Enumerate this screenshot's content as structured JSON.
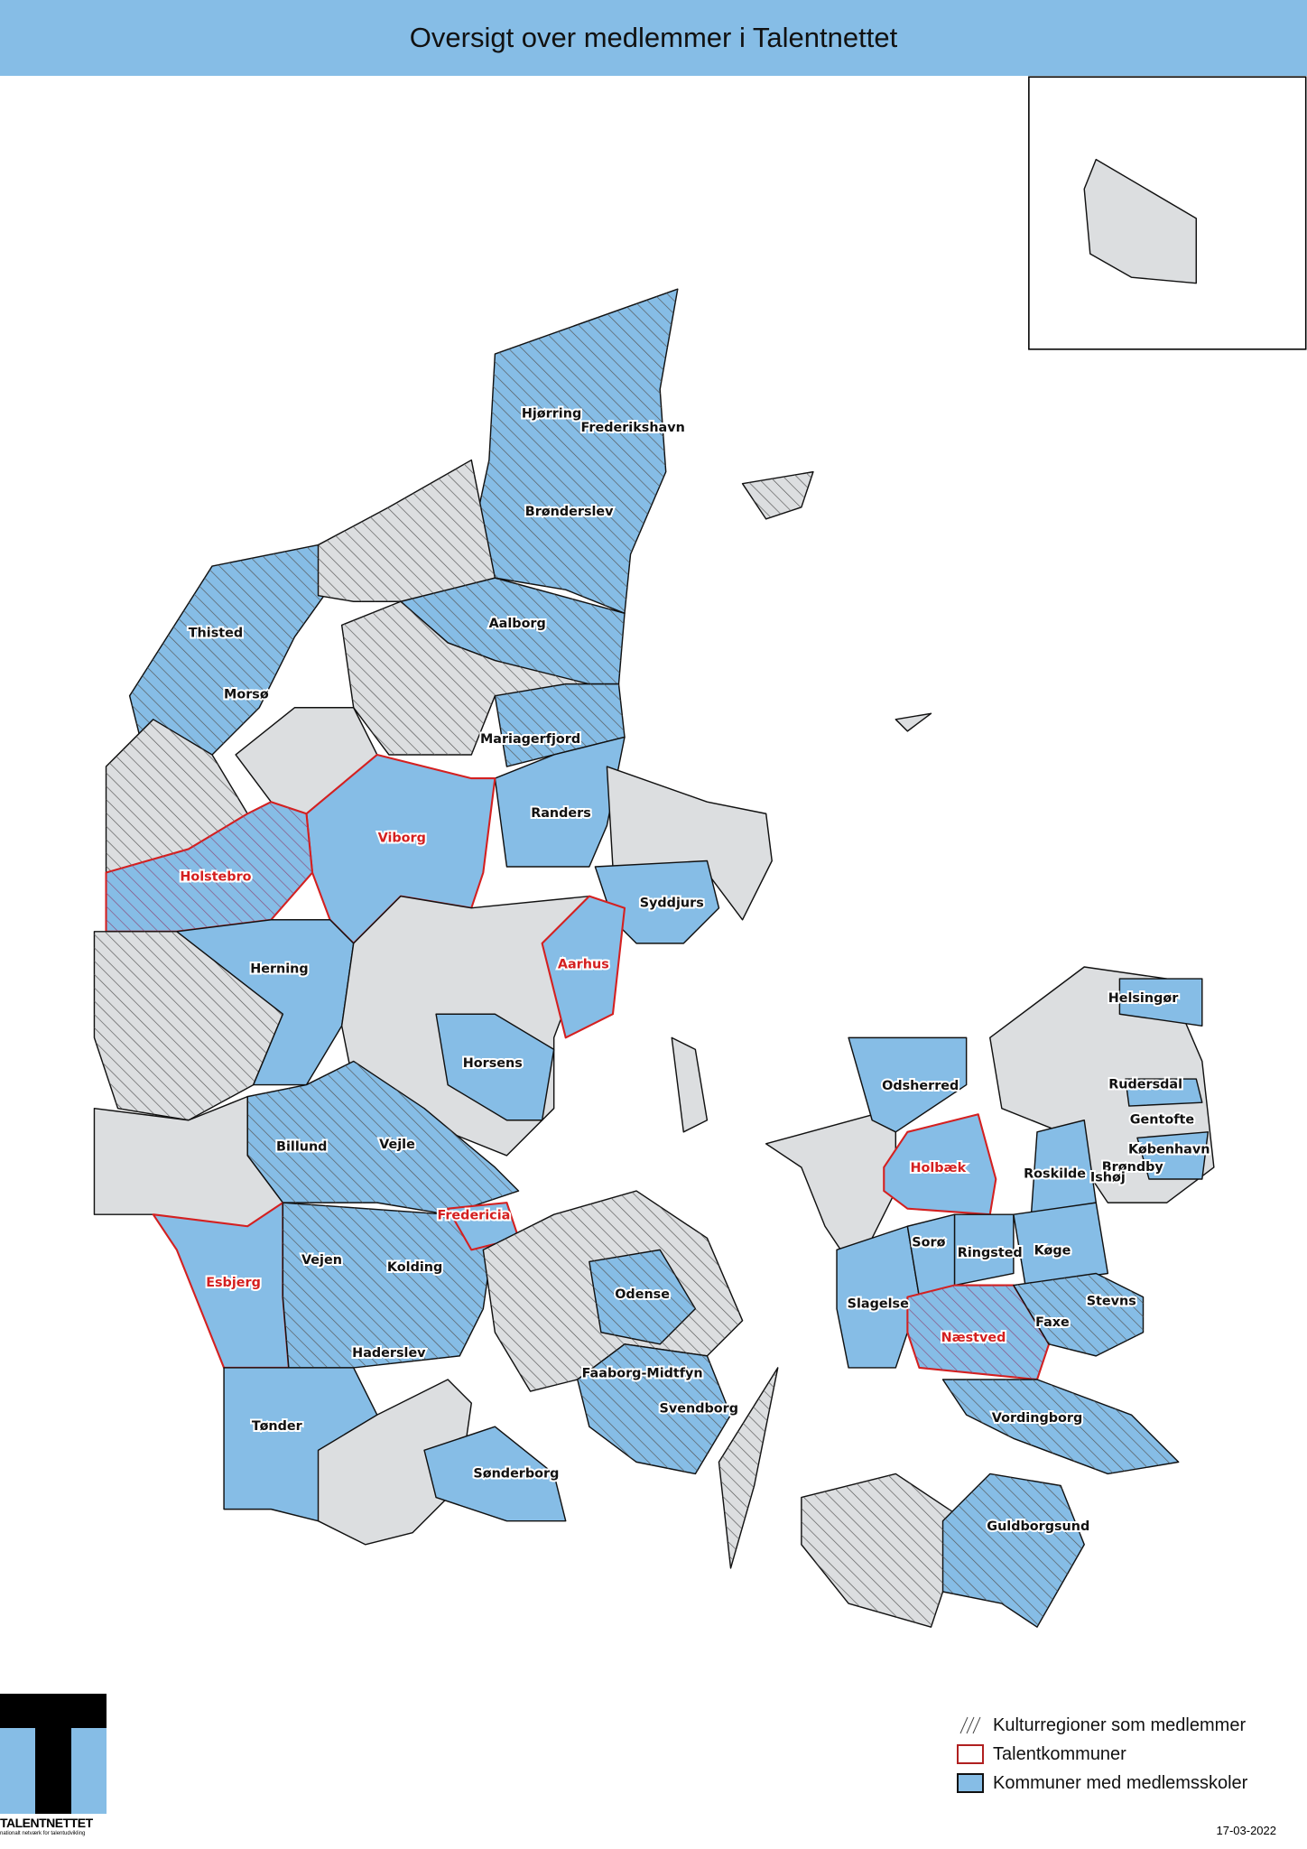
{
  "title": "Oversigt over medlemmer i Talentnettet",
  "colors": {
    "member_blue": "#86bde6",
    "other_gray": "#dcdee0",
    "talent_red": "#d42020",
    "title_bar": "#86bde6"
  },
  "legend": {
    "hatch": "Kulturregioner som medlemmer",
    "talent": "Talentkommuner",
    "member": "Kommuner med medlemsskoler"
  },
  "labels": {
    "members": [
      "Hjørring",
      "Frederikshavn",
      "Brønderslev",
      "Thisted",
      "Aalborg",
      "Morsø",
      "Mariagerfjord",
      "Randers",
      "Syddjurs",
      "Herning",
      "Horsens",
      "Billund",
      "Vejle",
      "Vejen",
      "Kolding",
      "Haderslev",
      "Tønder",
      "Sønderborg",
      "Odense",
      "Faaborg-Midtfyn",
      "Svendborg",
      "Odsherred",
      "Helsingør",
      "Rudersdal",
      "Gentofte",
      "København",
      "Roskilde",
      "Brøndby",
      "Ishøj",
      "Sorø",
      "Ringsted",
      "Køge",
      "Slagelse",
      "Faxe",
      "Stevns",
      "Vordingborg",
      "Guldborgsund"
    ],
    "talent": [
      "Viborg",
      "Holstebro",
      "Aarhus",
      "Fredericia",
      "Esbjerg",
      "Holbæk",
      "Næstved"
    ]
  },
  "logo": {
    "name": "TALENTNETTET",
    "tagline": "nationalt netværk for talentudvikling"
  },
  "date": "17-03-2022"
}
